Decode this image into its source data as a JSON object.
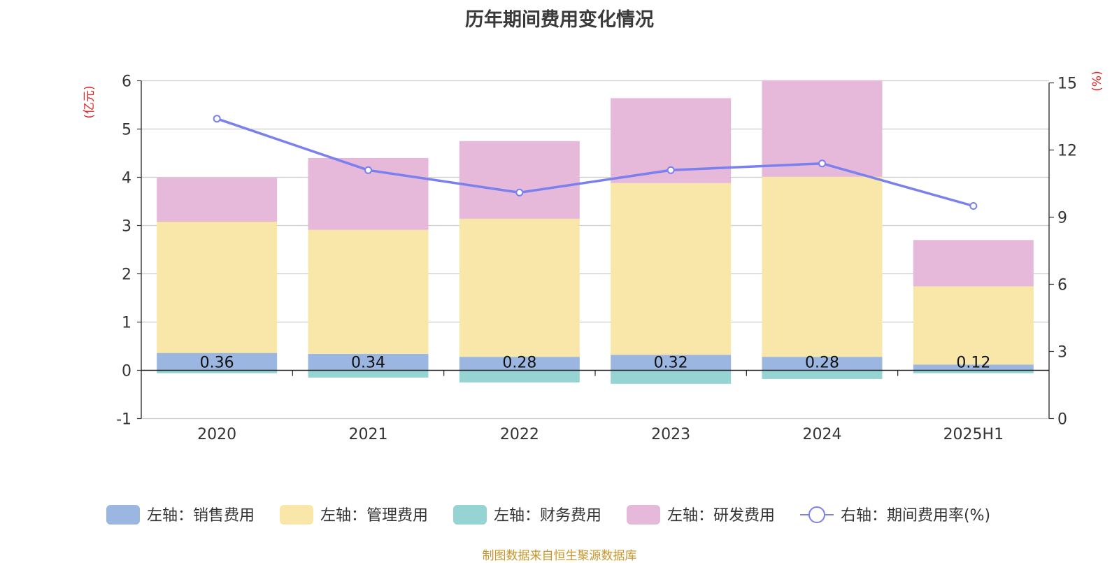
{
  "chart_data": {
    "type": "bar",
    "title": "历年期间费用变化情况",
    "categories": [
      "2020",
      "2021",
      "2022",
      "2023",
      "2024",
      "2025H1"
    ],
    "left_axis": {
      "unit_label": "(亿元)",
      "ylim": [
        -1,
        6
      ],
      "ticks": [
        -1,
        0,
        1,
        2,
        3,
        4,
        5,
        6
      ]
    },
    "right_axis": {
      "unit_label": "(%)",
      "ylim": [
        0,
        15
      ],
      "ticks": [
        0,
        3,
        6,
        9,
        12,
        15
      ]
    },
    "grid": true,
    "legend_position": "bottom",
    "series": [
      {
        "name": "左轴：销售费用",
        "type": "bar",
        "axis": "left",
        "color": "#9bb6e1",
        "values": [
          0.36,
          0.34,
          0.28,
          0.32,
          0.28,
          0.12
        ],
        "data_labels": [
          "0.36",
          "0.34",
          "0.28",
          "0.32",
          "0.28",
          "0.12"
        ]
      },
      {
        "name": "左轴：管理费用",
        "type": "bar",
        "axis": "left",
        "color": "#f8e7a8",
        "values": [
          2.72,
          2.57,
          2.86,
          3.56,
          3.73,
          1.62
        ]
      },
      {
        "name": "左轴：财务费用",
        "type": "bar",
        "axis": "left",
        "color": "#96d4d4",
        "values": [
          -0.06,
          -0.15,
          -0.25,
          -0.28,
          -0.18,
          -0.06
        ]
      },
      {
        "name": "左轴：研发费用",
        "type": "bar",
        "axis": "left",
        "color": "#e6b8d9",
        "values": [
          0.91,
          1.49,
          1.61,
          1.76,
          2.0,
          0.96
        ]
      },
      {
        "name": "右轴：期间费用率(%)",
        "type": "line",
        "axis": "right",
        "color": "#7a80ee",
        "values": [
          13.4,
          11.1,
          10.1,
          11.1,
          11.4,
          9.5
        ]
      }
    ]
  },
  "footer": {
    "source": "制图数据来自恒生聚源数据库"
  }
}
